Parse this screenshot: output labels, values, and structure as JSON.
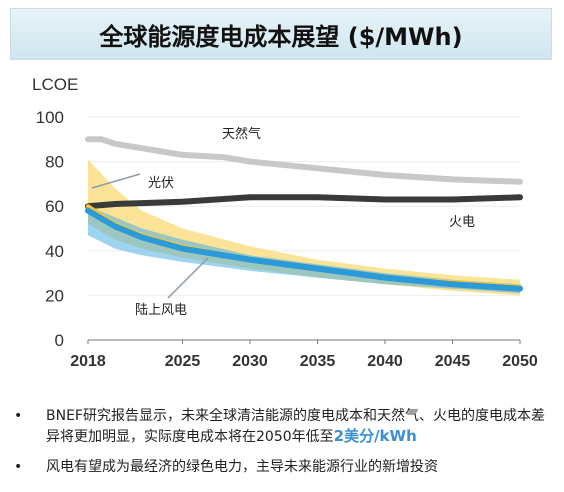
{
  "title": "全球能源度电成本展望 ($/MWh)",
  "chart_data": {
    "type": "line",
    "ylabel": "LCOE",
    "ylim": [
      0,
      100
    ],
    "y_ticks": [
      0,
      20,
      40,
      60,
      80,
      100
    ],
    "xlim": [
      2018,
      2050
    ],
    "x_ticks": [
      2018,
      2025,
      2030,
      2035,
      2040,
      2045,
      2050
    ],
    "series": [
      {
        "name": "天然气",
        "color": "#c8c8c8",
        "x": [
          2018,
          2019,
          2020,
          2022,
          2025,
          2028,
          2030,
          2035,
          2040,
          2045,
          2050
        ],
        "y": [
          90,
          90,
          88,
          86,
          83,
          82,
          80,
          77,
          74,
          72,
          71
        ]
      },
      {
        "name": "火电",
        "color": "#3a3a3a",
        "x": [
          2018,
          2020,
          2025,
          2030,
          2035,
          2040,
          2045,
          2050
        ],
        "y": [
          60,
          61,
          62,
          64,
          64,
          63,
          63,
          64
        ]
      },
      {
        "name": "光伏",
        "color": "#f2c53a",
        "x": [
          2018,
          2020,
          2022,
          2025,
          2030,
          2035,
          2040,
          2045,
          2050
        ],
        "y": [
          60,
          52,
          47,
          42,
          36,
          32,
          28,
          26,
          24
        ],
        "band_high": [
          81,
          68,
          58,
          50,
          42,
          36,
          32,
          29,
          27
        ],
        "band_low": [
          52,
          45,
          41,
          37,
          32,
          28,
          25,
          22,
          20
        ]
      },
      {
        "name": "陆上风电",
        "color": "#2b9ad6",
        "x": [
          2018,
          2020,
          2022,
          2025,
          2030,
          2035,
          2040,
          2045,
          2050
        ],
        "y": [
          58,
          51,
          46,
          41,
          36,
          32,
          28,
          25,
          23
        ],
        "band_high": [
          60,
          55,
          50,
          45,
          38,
          34,
          30,
          27,
          25
        ],
        "band_low": [
          47,
          41,
          38,
          35,
          31,
          28,
          25,
          23,
          21
        ]
      }
    ]
  },
  "notes": [
    {
      "text": "BNEF研究报告显示，未来全球清洁能源的度电成本和天然气、火电的度电成本差异将更加明显，实际度电成本将在2050年低至",
      "highlight": "2美分/kWh"
    },
    {
      "text": "风电有望成为最经济的绿色电力，主导未来能源行业的新增投资",
      "highlight": ""
    }
  ],
  "bullet": "•"
}
